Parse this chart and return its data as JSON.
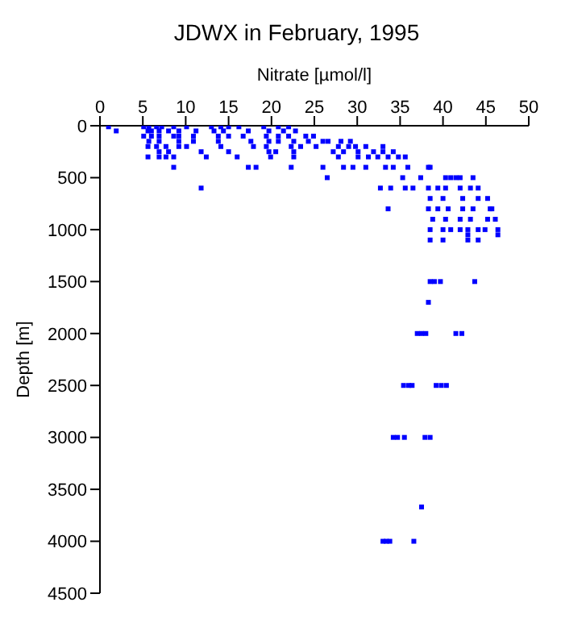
{
  "chart_data": {
    "type": "scatter",
    "title": "JDWX in February, 1995",
    "xlabel": "Nitrate [µmol/l]",
    "ylabel": "Depth [m]",
    "xlim": [
      0,
      50
    ],
    "xticks": [
      0,
      5,
      10,
      15,
      20,
      25,
      30,
      35,
      40,
      45,
      50
    ],
    "ylim": [
      4500,
      0
    ],
    "yticks": [
      0,
      500,
      1000,
      1500,
      2000,
      2500,
      3000,
      3500,
      4000,
      4500
    ],
    "grid": false,
    "legend": false,
    "marker": "square",
    "series": [
      {
        "color": "#0000ff",
        "x": [
          1.0,
          5.1,
          5.7,
          6.6,
          7.2,
          8.6,
          10.1,
          13.0,
          14.1,
          15.0,
          16.2,
          19.1,
          20.8,
          22.0,
          1.9,
          5.6,
          6.0,
          6.9,
          8.0,
          9.2,
          11.2,
          13.3,
          14.4,
          17.3,
          19.7,
          21.4,
          22.8,
          5.1,
          6.0,
          6.9,
          8.6,
          9.2,
          10.9,
          13.8,
          15.0,
          16.7,
          19.4,
          20.8,
          22.0,
          24.0,
          24.9,
          5.7,
          6.9,
          9.2,
          10.9,
          13.8,
          17.6,
          19.7,
          20.8,
          22.6,
          24.3,
          26.0,
          26.6,
          28.1,
          29.2,
          5.6,
          6.6,
          7.7,
          9.2,
          10.1,
          14.1,
          17.9,
          19.4,
          22.3,
          23.4,
          25.2,
          27.8,
          29.0,
          29.8,
          31.0,
          33.0,
          6.9,
          8.0,
          11.8,
          15.0,
          19.7,
          20.5,
          22.6,
          27.2,
          28.4,
          30.1,
          31.9,
          33.0,
          34.2,
          5.6,
          6.9,
          7.7,
          8.6,
          12.4,
          16.0,
          19.9,
          22.6,
          27.8,
          30.1,
          31.3,
          32.4,
          33.6,
          34.8,
          35.6,
          8.6,
          17.3,
          18.2,
          22.3,
          26.0,
          28.4,
          29.5,
          31.0,
          33.3,
          34.2,
          35.9,
          38.3,
          38.5,
          26.5,
          35.3,
          37.4,
          40.3,
          40.9,
          41.5,
          42.0,
          43.5,
          11.8,
          32.7,
          33.9,
          35.6,
          36.5,
          38.3,
          39.4,
          40.3,
          42.0,
          43.2,
          44.1,
          38.5,
          40.0,
          42.3,
          44.1,
          45.2,
          33.6,
          38.3,
          39.4,
          40.6,
          42.3,
          43.5,
          45.5,
          45.7,
          38.8,
          40.3,
          42.0,
          43.2,
          45.2,
          46.1,
          38.5,
          40.0,
          40.9,
          42.0,
          42.9,
          44.1,
          44.9,
          46.4,
          42.9,
          46.4,
          38.5,
          40.0,
          42.9,
          44.1,
          38.5,
          39.0,
          39.7,
          43.7,
          38.3,
          37.0,
          37.5,
          38.0,
          41.5,
          42.2,
          35.4,
          36.0,
          36.4,
          39.2,
          39.8,
          40.4,
          34.2,
          34.7,
          35.5,
          37.9,
          38.5,
          37.5,
          33.0,
          33.4,
          33.8,
          36.6
        ],
        "values": [
          10,
          10,
          10,
          10,
          10,
          10,
          10,
          10,
          10,
          10,
          10,
          10,
          10,
          10,
          50,
          50,
          50,
          50,
          50,
          50,
          50,
          50,
          50,
          50,
          50,
          50,
          50,
          100,
          100,
          100,
          100,
          100,
          100,
          100,
          100,
          100,
          100,
          100,
          100,
          100,
          100,
          150,
          150,
          150,
          150,
          150,
          150,
          150,
          150,
          150,
          150,
          150,
          150,
          150,
          150,
          200,
          200,
          200,
          200,
          200,
          200,
          200,
          200,
          200,
          200,
          200,
          200,
          200,
          200,
          200,
          200,
          250,
          250,
          250,
          250,
          250,
          250,
          250,
          250,
          250,
          250,
          250,
          250,
          250,
          300,
          300,
          300,
          300,
          300,
          300,
          300,
          300,
          300,
          300,
          300,
          300,
          300,
          300,
          300,
          400,
          400,
          400,
          400,
          400,
          400,
          400,
          400,
          400,
          400,
          400,
          400,
          400,
          500,
          500,
          500,
          500,
          500,
          500,
          500,
          500,
          600,
          600,
          600,
          600,
          600,
          600,
          600,
          600,
          600,
          600,
          600,
          700,
          700,
          700,
          700,
          700,
          800,
          800,
          800,
          800,
          800,
          800,
          800,
          800,
          900,
          900,
          900,
          900,
          900,
          900,
          1000,
          1000,
          1000,
          1000,
          1000,
          1000,
          1000,
          1000,
          1050,
          1050,
          1100,
          1100,
          1100,
          1100,
          1500,
          1500,
          1500,
          1500,
          1700,
          2000,
          2000,
          2000,
          2000,
          2000,
          2500,
          2500,
          2500,
          2500,
          2500,
          2500,
          3000,
          3000,
          3000,
          3000,
          3000,
          3670,
          4000,
          4000,
          4000,
          4000
        ]
      }
    ]
  }
}
